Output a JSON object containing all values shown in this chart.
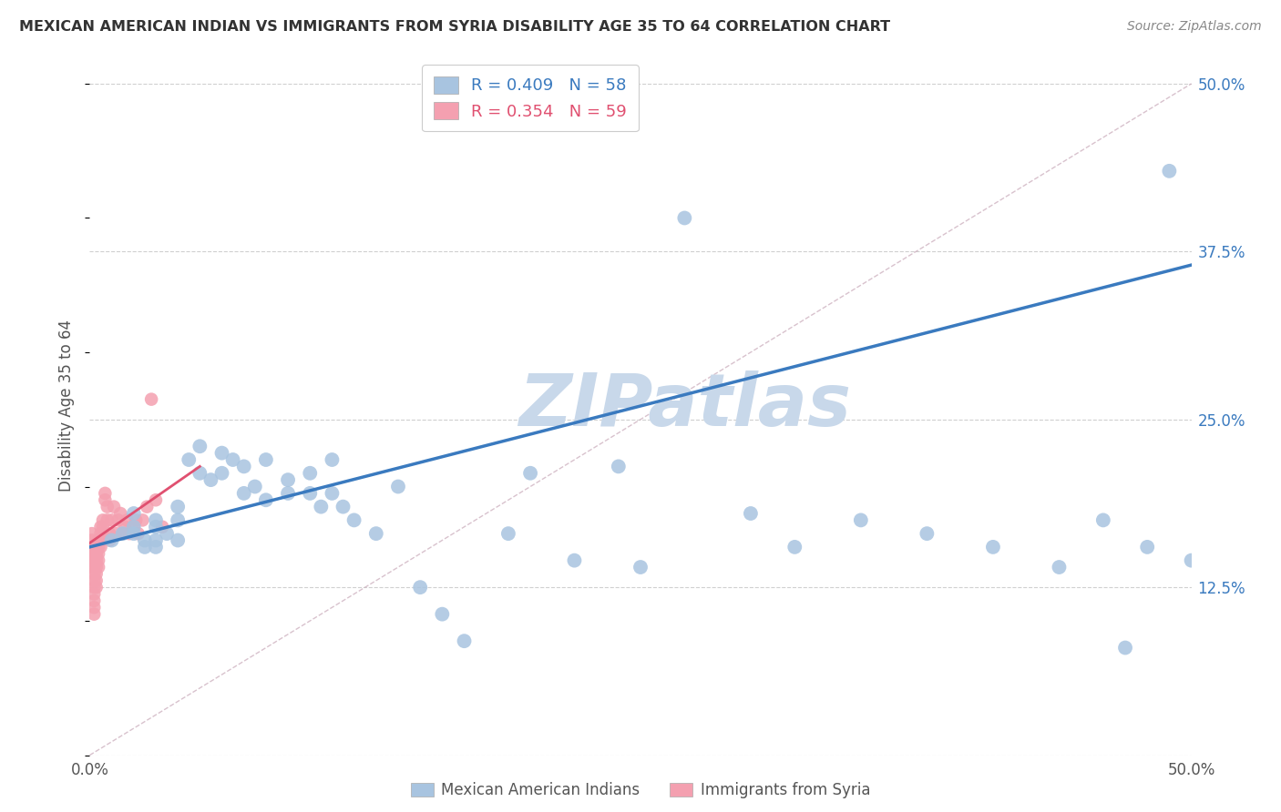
{
  "title": "MEXICAN AMERICAN INDIAN VS IMMIGRANTS FROM SYRIA DISABILITY AGE 35 TO 64 CORRELATION CHART",
  "source": "Source: ZipAtlas.com",
  "ylabel": "Disability Age 35 to 64",
  "xlim": [
    0.0,
    0.5
  ],
  "ylim": [
    0.0,
    0.52
  ],
  "ytick_vals": [
    0.0,
    0.125,
    0.25,
    0.375,
    0.5
  ],
  "ytick_labels_right": [
    "",
    "12.5%",
    "25.0%",
    "37.5%",
    "50.0%"
  ],
  "xtick_vals": [
    0.0,
    0.1,
    0.2,
    0.3,
    0.4,
    0.5
  ],
  "xtick_labels": [
    "0.0%",
    "",
    "",
    "",
    "",
    "50.0%"
  ],
  "blue_R": 0.409,
  "blue_N": 58,
  "pink_R": 0.354,
  "pink_N": 59,
  "blue_color": "#a8c4e0",
  "pink_color": "#f4a0b0",
  "blue_line_color": "#3a7abf",
  "pink_line_color": "#e05070",
  "diag_color": "#c8a8b8",
  "watermark": "ZIPatlas",
  "watermark_color": "#c8d8ea",
  "legend_blue_label": "Mexican American Indians",
  "legend_pink_label": "Immigrants from Syria",
  "blue_line_x0": 0.0,
  "blue_line_y0": 0.155,
  "blue_line_x1": 0.5,
  "blue_line_y1": 0.365,
  "pink_line_x0": 0.0,
  "pink_line_y0": 0.158,
  "pink_line_x1": 0.05,
  "pink_line_y1": 0.215,
  "blue_scatter_x": [
    0.01,
    0.015,
    0.02,
    0.02,
    0.02,
    0.025,
    0.025,
    0.03,
    0.03,
    0.03,
    0.03,
    0.035,
    0.04,
    0.04,
    0.04,
    0.045,
    0.05,
    0.05,
    0.055,
    0.06,
    0.06,
    0.065,
    0.07,
    0.07,
    0.075,
    0.08,
    0.08,
    0.09,
    0.09,
    0.1,
    0.1,
    0.105,
    0.11,
    0.11,
    0.115,
    0.12,
    0.13,
    0.14,
    0.15,
    0.16,
    0.17,
    0.19,
    0.2,
    0.22,
    0.24,
    0.25,
    0.27,
    0.3,
    0.32,
    0.35,
    0.38,
    0.41,
    0.44,
    0.46,
    0.47,
    0.48,
    0.49,
    0.5
  ],
  "blue_scatter_y": [
    0.16,
    0.165,
    0.17,
    0.18,
    0.165,
    0.155,
    0.16,
    0.17,
    0.175,
    0.16,
    0.155,
    0.165,
    0.16,
    0.175,
    0.185,
    0.22,
    0.21,
    0.23,
    0.205,
    0.225,
    0.21,
    0.22,
    0.195,
    0.215,
    0.2,
    0.19,
    0.22,
    0.205,
    0.195,
    0.21,
    0.195,
    0.185,
    0.195,
    0.22,
    0.185,
    0.175,
    0.165,
    0.2,
    0.125,
    0.105,
    0.085,
    0.165,
    0.21,
    0.145,
    0.215,
    0.14,
    0.4,
    0.18,
    0.155,
    0.175,
    0.165,
    0.155,
    0.14,
    0.175,
    0.08,
    0.155,
    0.435,
    0.145
  ],
  "pink_scatter_x": [
    0.001,
    0.001,
    0.001,
    0.001,
    0.001,
    0.001,
    0.002,
    0.002,
    0.002,
    0.002,
    0.002,
    0.002,
    0.002,
    0.002,
    0.002,
    0.002,
    0.002,
    0.003,
    0.003,
    0.003,
    0.003,
    0.003,
    0.003,
    0.003,
    0.004,
    0.004,
    0.004,
    0.004,
    0.004,
    0.005,
    0.005,
    0.005,
    0.005,
    0.006,
    0.006,
    0.006,
    0.007,
    0.007,
    0.008,
    0.008,
    0.009,
    0.009,
    0.01,
    0.011,
    0.012,
    0.013,
    0.014,
    0.015,
    0.016,
    0.017,
    0.018,
    0.02,
    0.021,
    0.022,
    0.024,
    0.026,
    0.028,
    0.03,
    0.033
  ],
  "pink_scatter_y": [
    0.16,
    0.155,
    0.15,
    0.145,
    0.14,
    0.165,
    0.155,
    0.15,
    0.145,
    0.14,
    0.135,
    0.13,
    0.125,
    0.12,
    0.115,
    0.11,
    0.105,
    0.155,
    0.15,
    0.145,
    0.14,
    0.135,
    0.13,
    0.125,
    0.16,
    0.155,
    0.15,
    0.145,
    0.14,
    0.17,
    0.165,
    0.16,
    0.155,
    0.175,
    0.17,
    0.165,
    0.195,
    0.19,
    0.185,
    0.175,
    0.165,
    0.16,
    0.175,
    0.185,
    0.165,
    0.175,
    0.18,
    0.165,
    0.17,
    0.175,
    0.165,
    0.17,
    0.175,
    0.165,
    0.175,
    0.185,
    0.265,
    0.19,
    0.17
  ]
}
